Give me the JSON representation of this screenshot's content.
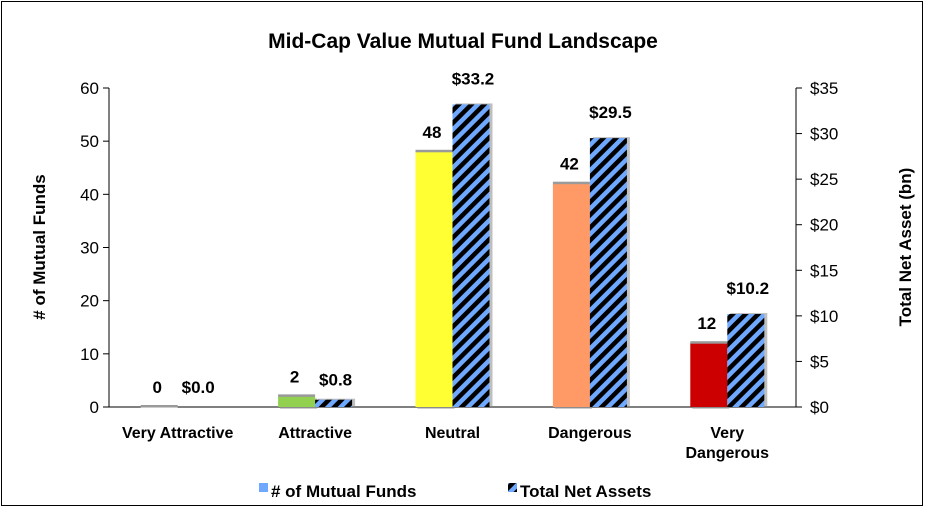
{
  "chart_data": {
    "type": "bar",
    "title": "Mid-Cap Value Mutual Fund Landscape",
    "categories": [
      "Very Attractive",
      "Attractive",
      "Neutral",
      "Dangerous",
      "Very Dangerous"
    ],
    "category_lines": [
      [
        "Very Attractive"
      ],
      [
        "Attractive"
      ],
      [
        "Neutral"
      ],
      [
        "Dangerous"
      ],
      [
        "Very",
        "Dangerous"
      ]
    ],
    "series": [
      {
        "name": "# of Mutual Funds",
        "axis": "left",
        "values": [
          0,
          2,
          48,
          42,
          12
        ],
        "labels": [
          "0",
          "2",
          "48",
          "42",
          "12"
        ],
        "bar_colors": [
          "#bfbfbf",
          "#92d050",
          "#ffff33",
          "#ff9966",
          "#cc0000"
        ]
      },
      {
        "name": "Total Net Assets",
        "axis": "right",
        "values": [
          0.0,
          0.8,
          33.2,
          29.5,
          10.2
        ],
        "labels": [
          "$0.0",
          "$0.8",
          "$33.2",
          "$29.5",
          "$10.2"
        ],
        "pattern_colors": [
          "#000000",
          "#6fa8ff"
        ]
      }
    ],
    "ylabel": "# of Mutual Funds",
    "ylim": [
      0,
      60
    ],
    "yticks": [
      "0",
      "10",
      "20",
      "30",
      "40",
      "50",
      "60"
    ],
    "y2label": "Total Net Asset (bn)",
    "y2lim": [
      0,
      35
    ],
    "y2ticks": [
      "$0",
      "$5",
      "$10",
      "$15",
      "$20",
      "$25",
      "$30",
      "$35"
    ],
    "grid": false,
    "legend_position": "bottom",
    "legend_swatch_color": "#6fa8ff"
  }
}
